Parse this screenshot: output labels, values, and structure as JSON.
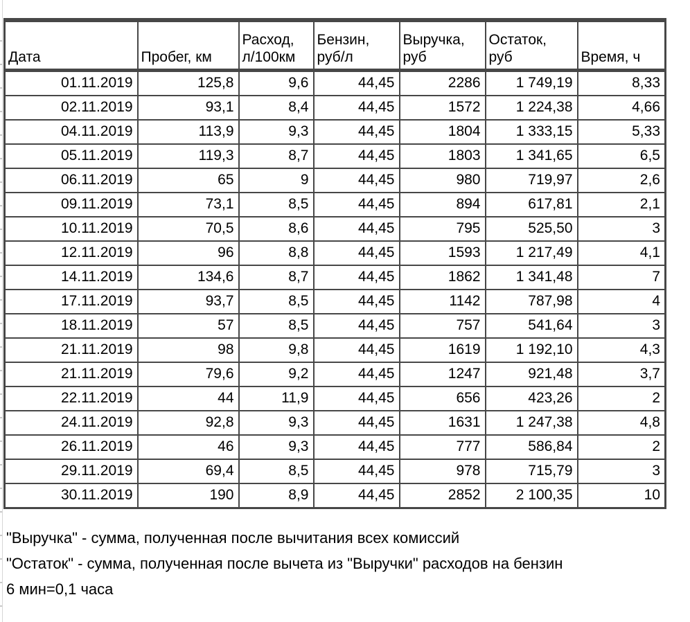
{
  "colors": {
    "table_border": "#474747",
    "gridline": "#d6d6d6",
    "background": "#ffffff",
    "text": "#000000"
  },
  "table": {
    "columns": [
      "Дата",
      "Пробег, км",
      "Расход,\nл/100км",
      "Бензин,\nруб/л",
      "Выручка,\nруб",
      "Остаток,\nруб",
      "Время, ч"
    ],
    "column_keys": [
      "date",
      "mileage-km",
      "consumption-l-100km",
      "petrol-rub-l",
      "revenue-rub",
      "remainder-rub",
      "time-h"
    ],
    "rows": [
      [
        "01.11.2019",
        "125,8",
        "9,6",
        "44,45",
        "2286",
        "1 749,19",
        "8,33"
      ],
      [
        "02.11.2019",
        "93,1",
        "8,4",
        "44,45",
        "1572",
        "1 224,38",
        "4,66"
      ],
      [
        "04.11.2019",
        "113,9",
        "9,3",
        "44,45",
        "1804",
        "1 333,15",
        "5,33"
      ],
      [
        "05.11.2019",
        "119,3",
        "8,7",
        "44,45",
        "1803",
        "1 341,65",
        "6,5"
      ],
      [
        "06.11.2019",
        "65",
        "9",
        "44,45",
        "980",
        "719,97",
        "2,6"
      ],
      [
        "09.11.2019",
        "73,1",
        "8,5",
        "44,45",
        "894",
        "617,81",
        "2,1"
      ],
      [
        "10.11.2019",
        "70,5",
        "8,6",
        "44,45",
        "795",
        "525,50",
        "3"
      ],
      [
        "12.11.2019",
        "96",
        "8,8",
        "44,45",
        "1593",
        "1 217,49",
        "4,1"
      ],
      [
        "14.11.2019",
        "134,6",
        "8,7",
        "44,45",
        "1862",
        "1 341,48",
        "7"
      ],
      [
        "17.11.2019",
        "93,7",
        "8,5",
        "44,45",
        "1142",
        "787,98",
        "4"
      ],
      [
        "18.11.2019",
        "57",
        "8,5",
        "44,45",
        "757",
        "541,64",
        "3"
      ],
      [
        "21.11.2019",
        "98",
        "9,8",
        "44,45",
        "1619",
        "1 192,10",
        "4,3"
      ],
      [
        "21.11.2019",
        "79,6",
        "9,2",
        "44,45",
        "1247",
        "921,48",
        "3,7"
      ],
      [
        "22.11.2019",
        "44",
        "11,9",
        "44,45",
        "656",
        "423,26",
        "2"
      ],
      [
        "24.11.2019",
        "92,8",
        "9,3",
        "44,45",
        "1631",
        "1 247,38",
        "4,8"
      ],
      [
        "26.11.2019",
        "46",
        "9,3",
        "44,45",
        "777",
        "586,84",
        "2"
      ],
      [
        "29.11.2019",
        "69,4",
        "8,5",
        "44,45",
        "978",
        "715,79",
        "3"
      ],
      [
        "30.11.2019",
        "190",
        "8,9",
        "44,45",
        "2852",
        "2 100,35",
        "10"
      ]
    ]
  },
  "notes": [
    "\"Выручка\" - сумма, полученная после вычитания всех комиссий",
    "\"Остаток\" - сумма, полученная после вычета из \"Выручки\" расходов на бензин",
    "6 мин=0,1 часа"
  ]
}
